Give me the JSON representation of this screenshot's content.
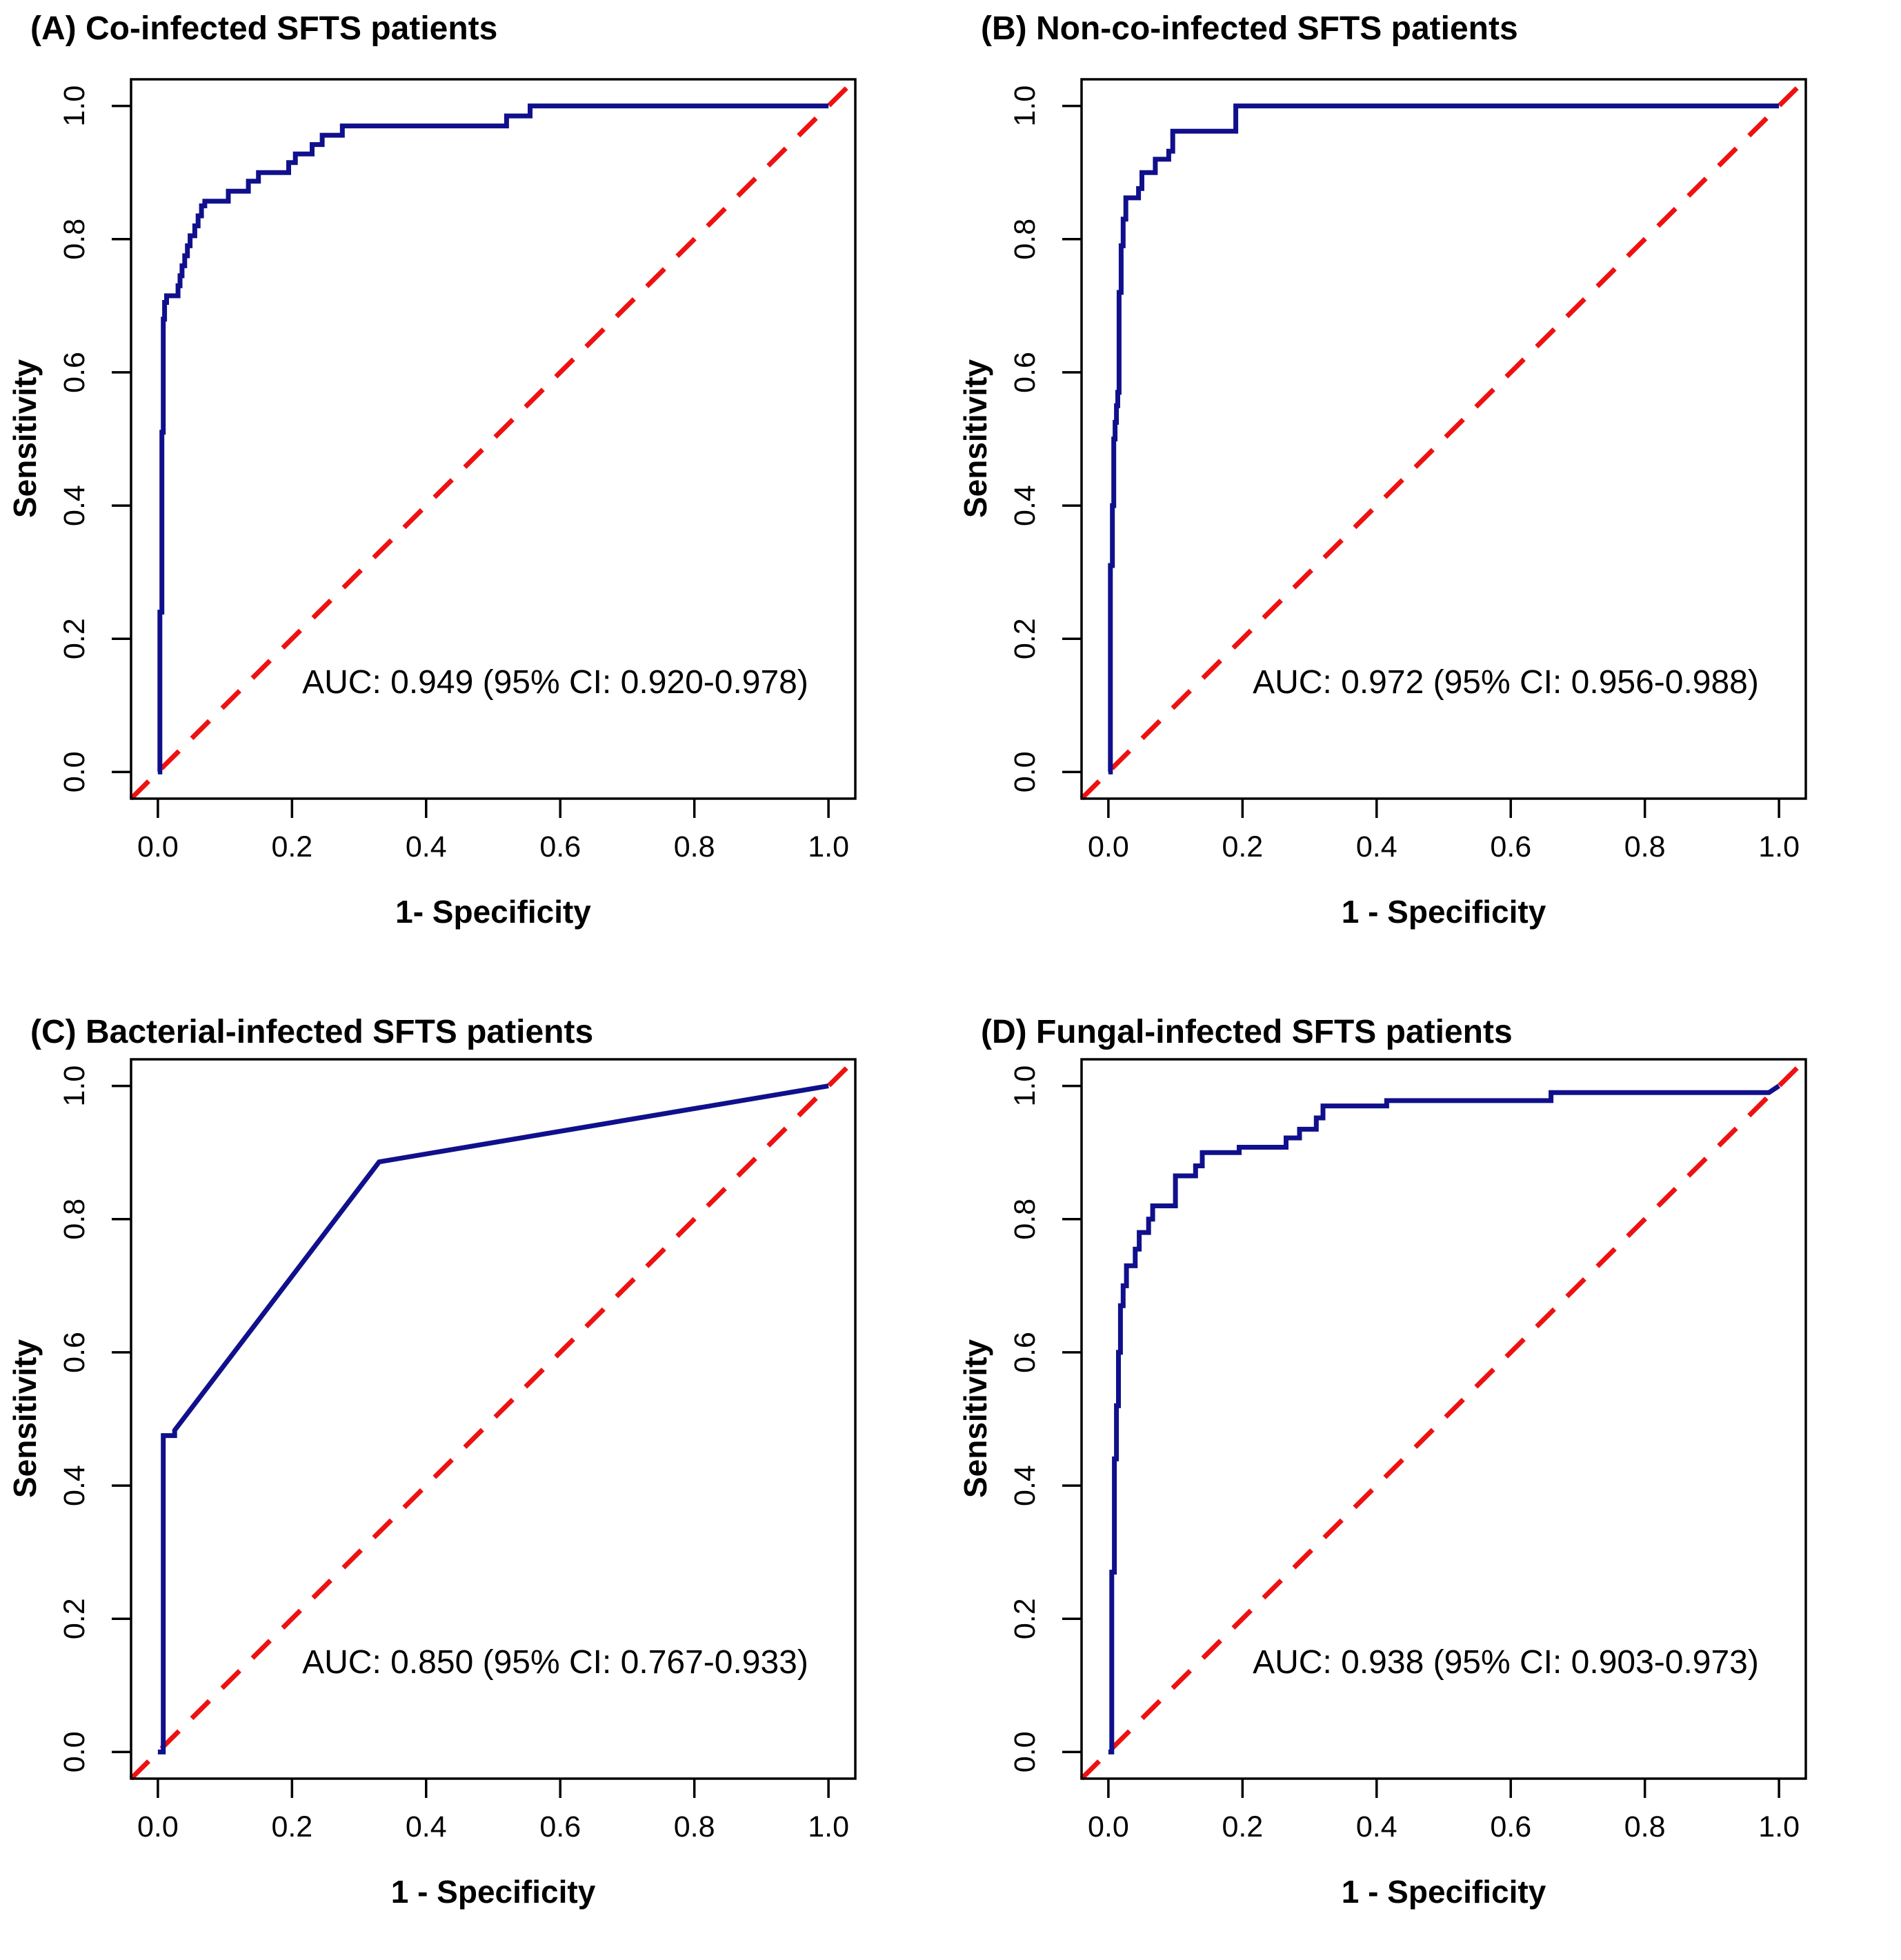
{
  "figure": {
    "background": "#ffffff",
    "description_visible_panels": 4
  },
  "colors": {
    "roc_curve": "#10108C",
    "diagonal": "#EE1111",
    "axis": "#000000",
    "text": "#000000"
  },
  "chart_data": [
    {
      "id": "A",
      "type": "line",
      "title": "(A) Co-infected SFTS patients",
      "xlabel": "1- Specificity",
      "ylabel": "Sensitivity",
      "auc_label": "AUC: 0.949 (95% CI: 0.920-0.978)",
      "auc": 0.949,
      "ci_low": 0.92,
      "ci_high": 0.978,
      "xlim": [
        0,
        1
      ],
      "ylim": [
        0,
        1
      ],
      "axis_expansion": 0.04,
      "grid": false,
      "x_ticks": [
        "0.0",
        "0.2",
        "0.4",
        "0.6",
        "0.8",
        "1.0"
      ],
      "y_ticks": [
        "0.0",
        "0.2",
        "0.4",
        "0.6",
        "0.8",
        "1.0"
      ],
      "diagonal_reference": true,
      "roc_points": [
        [
          0,
          0
        ],
        [
          0.003,
          0
        ],
        [
          0.003,
          0.24
        ],
        [
          0.006,
          0.24
        ],
        [
          0.006,
          0.51
        ],
        [
          0.008,
          0.51
        ],
        [
          0.008,
          0.68
        ],
        [
          0.01,
          0.68
        ],
        [
          0.01,
          0.705
        ],
        [
          0.013,
          0.705
        ],
        [
          0.013,
          0.715
        ],
        [
          0.03,
          0.715
        ],
        [
          0.03,
          0.73
        ],
        [
          0.033,
          0.73
        ],
        [
          0.033,
          0.745
        ],
        [
          0.036,
          0.745
        ],
        [
          0.036,
          0.76
        ],
        [
          0.04,
          0.76
        ],
        [
          0.04,
          0.775
        ],
        [
          0.044,
          0.775
        ],
        [
          0.044,
          0.79
        ],
        [
          0.048,
          0.79
        ],
        [
          0.048,
          0.805
        ],
        [
          0.055,
          0.805
        ],
        [
          0.055,
          0.82
        ],
        [
          0.06,
          0.82
        ],
        [
          0.06,
          0.835
        ],
        [
          0.065,
          0.835
        ],
        [
          0.065,
          0.85
        ],
        [
          0.07,
          0.85
        ],
        [
          0.07,
          0.857
        ],
        [
          0.105,
          0.857
        ],
        [
          0.105,
          0.872
        ],
        [
          0.135,
          0.872
        ],
        [
          0.135,
          0.887
        ],
        [
          0.15,
          0.887
        ],
        [
          0.15,
          0.9
        ],
        [
          0.195,
          0.9
        ],
        [
          0.195,
          0.915
        ],
        [
          0.205,
          0.915
        ],
        [
          0.205,
          0.928
        ],
        [
          0.23,
          0.928
        ],
        [
          0.23,
          0.942
        ],
        [
          0.245,
          0.942
        ],
        [
          0.245,
          0.956
        ],
        [
          0.275,
          0.956
        ],
        [
          0.275,
          0.97
        ],
        [
          0.52,
          0.97
        ],
        [
          0.52,
          0.985
        ],
        [
          0.555,
          0.985
        ],
        [
          0.555,
          1.0
        ],
        [
          1.0,
          1.0
        ]
      ]
    },
    {
      "id": "B",
      "type": "line",
      "title": "(B) Non-co-infected SFTS patients",
      "xlabel": "1 - Specificity",
      "ylabel": "Sensitivity",
      "auc_label": "AUC: 0.972 (95% CI: 0.956-0.988)",
      "auc": 0.972,
      "ci_low": 0.956,
      "ci_high": 0.988,
      "xlim": [
        0,
        1
      ],
      "ylim": [
        0,
        1
      ],
      "axis_expansion": 0.04,
      "grid": false,
      "x_ticks": [
        "0.0",
        "0.2",
        "0.4",
        "0.6",
        "0.8",
        "1.0"
      ],
      "y_ticks": [
        "0.0",
        "0.2",
        "0.4",
        "0.6",
        "0.8",
        "1.0"
      ],
      "diagonal_reference": true,
      "roc_points": [
        [
          0,
          0
        ],
        [
          0.003,
          0
        ],
        [
          0.003,
          0.31
        ],
        [
          0.006,
          0.31
        ],
        [
          0.006,
          0.4
        ],
        [
          0.008,
          0.4
        ],
        [
          0.008,
          0.5
        ],
        [
          0.01,
          0.5
        ],
        [
          0.01,
          0.525
        ],
        [
          0.012,
          0.525
        ],
        [
          0.012,
          0.55
        ],
        [
          0.014,
          0.55
        ],
        [
          0.014,
          0.57
        ],
        [
          0.016,
          0.57
        ],
        [
          0.016,
          0.72
        ],
        [
          0.019,
          0.72
        ],
        [
          0.019,
          0.79
        ],
        [
          0.022,
          0.79
        ],
        [
          0.022,
          0.83
        ],
        [
          0.026,
          0.83
        ],
        [
          0.026,
          0.862
        ],
        [
          0.045,
          0.862
        ],
        [
          0.045,
          0.876
        ],
        [
          0.05,
          0.876
        ],
        [
          0.05,
          0.9
        ],
        [
          0.07,
          0.9
        ],
        [
          0.07,
          0.92
        ],
        [
          0.09,
          0.92
        ],
        [
          0.09,
          0.932
        ],
        [
          0.096,
          0.932
        ],
        [
          0.096,
          0.962
        ],
        [
          0.19,
          0.962
        ],
        [
          0.19,
          1.0
        ],
        [
          1.0,
          1.0
        ]
      ]
    },
    {
      "id": "C",
      "type": "line",
      "title": "(C) Bacterial-infected SFTS patients",
      "xlabel": "1 - Specificity",
      "ylabel": "Sensitivity",
      "auc_label": "AUC: 0.850 (95% CI: 0.767-0.933)",
      "auc": 0.85,
      "ci_low": 0.767,
      "ci_high": 0.933,
      "xlim": [
        0,
        1
      ],
      "ylim": [
        0,
        1
      ],
      "axis_expansion": 0.04,
      "grid": false,
      "x_ticks": [
        "0.0",
        "0.2",
        "0.4",
        "0.6",
        "0.8",
        "1.0"
      ],
      "y_ticks": [
        "0.0",
        "0.2",
        "0.4",
        "0.6",
        "0.8",
        "1.0"
      ],
      "diagonal_reference": true,
      "roc_points": [
        [
          0,
          0
        ],
        [
          0.008,
          0
        ],
        [
          0.008,
          0.475
        ],
        [
          0.025,
          0.475
        ],
        [
          0.025,
          0.483
        ],
        [
          0.33,
          0.886
        ],
        [
          1.0,
          1.0
        ]
      ]
    },
    {
      "id": "D",
      "type": "line",
      "title": "(D) Fungal-infected SFTS patients",
      "xlabel": "1 - Specificity",
      "ylabel": "Sensitivity",
      "auc_label": "AUC: 0.938 (95% CI: 0.903-0.973)",
      "auc": 0.938,
      "ci_low": 0.903,
      "ci_high": 0.973,
      "xlim": [
        0,
        1
      ],
      "ylim": [
        0,
        1
      ],
      "axis_expansion": 0.04,
      "grid": false,
      "x_ticks": [
        "0.0",
        "0.2",
        "0.4",
        "0.6",
        "0.8",
        "1.0"
      ],
      "y_ticks": [
        "0.0",
        "0.2",
        "0.4",
        "0.6",
        "0.8",
        "1.0"
      ],
      "diagonal_reference": true,
      "roc_points": [
        [
          0,
          0
        ],
        [
          0.005,
          0
        ],
        [
          0.005,
          0.27
        ],
        [
          0.009,
          0.27
        ],
        [
          0.009,
          0.44
        ],
        [
          0.012,
          0.44
        ],
        [
          0.012,
          0.52
        ],
        [
          0.015,
          0.52
        ],
        [
          0.015,
          0.6
        ],
        [
          0.018,
          0.6
        ],
        [
          0.018,
          0.67
        ],
        [
          0.022,
          0.67
        ],
        [
          0.022,
          0.7
        ],
        [
          0.027,
          0.7
        ],
        [
          0.027,
          0.73
        ],
        [
          0.04,
          0.73
        ],
        [
          0.04,
          0.755
        ],
        [
          0.046,
          0.755
        ],
        [
          0.046,
          0.78
        ],
        [
          0.06,
          0.78
        ],
        [
          0.06,
          0.8
        ],
        [
          0.066,
          0.8
        ],
        [
          0.066,
          0.82
        ],
        [
          0.1,
          0.82
        ],
        [
          0.1,
          0.865
        ],
        [
          0.13,
          0.865
        ],
        [
          0.13,
          0.88
        ],
        [
          0.14,
          0.88
        ],
        [
          0.14,
          0.9
        ],
        [
          0.195,
          0.9
        ],
        [
          0.195,
          0.908
        ],
        [
          0.265,
          0.908
        ],
        [
          0.265,
          0.922
        ],
        [
          0.285,
          0.922
        ],
        [
          0.285,
          0.935
        ],
        [
          0.31,
          0.935
        ],
        [
          0.31,
          0.952
        ],
        [
          0.32,
          0.952
        ],
        [
          0.32,
          0.97
        ],
        [
          0.415,
          0.97
        ],
        [
          0.415,
          0.978
        ],
        [
          0.66,
          0.978
        ],
        [
          0.66,
          0.99
        ],
        [
          0.985,
          0.99
        ],
        [
          1.0,
          1.0
        ]
      ]
    }
  ]
}
